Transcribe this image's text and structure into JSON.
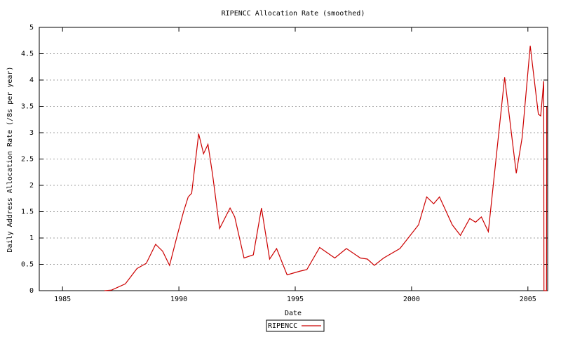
{
  "chart_data": {
    "type": "line",
    "title": "RIPENCC Allocation Rate (smoothed)",
    "x_label": "Date",
    "y_label": "Daily Address Allocation Rate (/8s per year)",
    "x": [
      1986.8,
      1987.1,
      1987.7,
      1988.2,
      1988.6,
      1989.0,
      1989.3,
      1989.6,
      1989.9,
      1990.2,
      1990.4,
      1990.55,
      1990.85,
      1991.06,
      1991.25,
      1991.45,
      1991.75,
      1992.2,
      1992.4,
      1992.8,
      1993.2,
      1993.55,
      1993.9,
      1994.2,
      1994.65,
      1995.2,
      1995.5,
      1996.05,
      1996.7,
      1997.2,
      1997.8,
      1998.1,
      1998.4,
      1998.8,
      1999.5,
      2000.3,
      2000.65,
      2000.95,
      2001.2,
      2001.75,
      2002.1,
      2002.5,
      2002.75,
      2003.0,
      2003.3,
      2004.0,
      2004.5,
      2004.75,
      2005.1,
      2005.45,
      2005.55,
      2005.68,
      2005.69,
      2005.8,
      2005.81
    ],
    "series": [
      {
        "name": "RIPENCC",
        "color": "#cc0000",
        "values": [
          0,
          0.01,
          0.13,
          0.42,
          0.52,
          0.88,
          0.75,
          0.48,
          1.0,
          1.5,
          1.78,
          1.85,
          2.98,
          2.6,
          2.78,
          2.2,
          1.18,
          1.57,
          1.4,
          0.62,
          0.68,
          1.57,
          0.6,
          0.8,
          0.3,
          0.37,
          0.4,
          0.82,
          0.62,
          0.8,
          0.62,
          0.6,
          0.48,
          0.62,
          0.8,
          1.25,
          1.78,
          1.65,
          1.78,
          1.25,
          1.05,
          1.37,
          1.3,
          1.4,
          1.12,
          4.05,
          2.23,
          2.9,
          4.65,
          3.35,
          3.32,
          3.98,
          0,
          0,
          3.5
        ]
      }
    ],
    "xlim": [
      1984,
      2005.85
    ],
    "ylim": [
      0,
      5
    ],
    "xticks": [
      1985,
      1990,
      1995,
      2000,
      2005
    ],
    "yticks": [
      0,
      0.5,
      1,
      1.5,
      2,
      2.5,
      3,
      3.5,
      4,
      4.5,
      5
    ],
    "grid": true,
    "legend": "bottom"
  }
}
